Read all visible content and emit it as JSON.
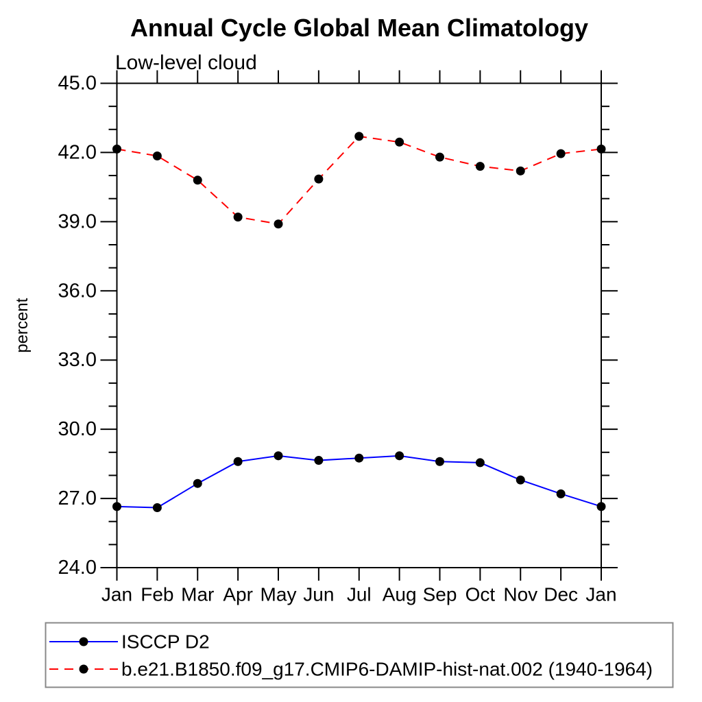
{
  "title": "Annual Cycle Global Mean Climatology",
  "subtitle": "Low-level cloud",
  "chart_data": {
    "type": "line",
    "title": "Annual Cycle Global Mean Climatology",
    "subtitle": "Low-level cloud",
    "xlabel": "",
    "ylabel": "percent",
    "ylim": [
      24.0,
      45.0
    ],
    "ytick_major_step": 3.0,
    "ytick_minor_step": 1.0,
    "ytick_labels": [
      "24.0",
      "27.0",
      "30.0",
      "33.0",
      "36.0",
      "39.0",
      "42.0",
      "45.0"
    ],
    "categories": [
      "Jan",
      "Feb",
      "Mar",
      "Apr",
      "May",
      "Jun",
      "Jul",
      "Aug",
      "Sep",
      "Oct",
      "Nov",
      "Dec",
      "Jan"
    ],
    "grid": false,
    "legend_position": "bottom-left-box",
    "axis_color": "#000000",
    "marker": "filled-circle",
    "marker_color": "#000000",
    "series": [
      {
        "name": "ISCCP D2",
        "color": "#0000ff",
        "line_style": "solid",
        "values": [
          26.65,
          26.6,
          27.65,
          28.6,
          28.85,
          28.65,
          28.75,
          28.85,
          28.6,
          28.55,
          27.8,
          27.2,
          26.65
        ]
      },
      {
        "name": "b.e21.B1850.f09_g17.CMIP6-DAMIP-hist-nat.002 (1940-1964)",
        "color": "#ff0000",
        "line_style": "dashed",
        "values": [
          42.15,
          41.85,
          40.8,
          39.2,
          38.9,
          40.85,
          42.7,
          42.45,
          41.8,
          41.4,
          41.2,
          41.95,
          42.15
        ]
      }
    ]
  }
}
